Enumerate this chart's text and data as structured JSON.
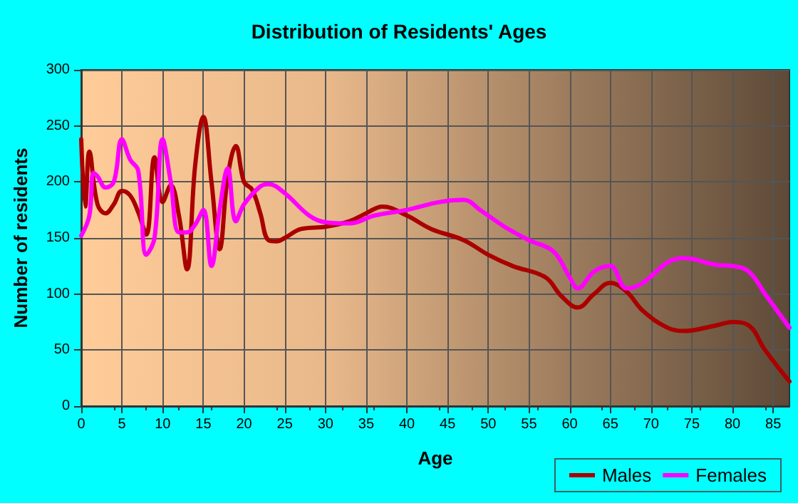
{
  "chart_data": {
    "type": "line",
    "title": "Distribution of Residents' Ages",
    "xlabel": "Age",
    "ylabel": "Number of residents",
    "xlim": [
      0,
      87
    ],
    "xticks": [
      0,
      5,
      10,
      15,
      20,
      25,
      30,
      35,
      40,
      45,
      50,
      55,
      60,
      65,
      70,
      75,
      80,
      85
    ],
    "ylim": [
      0,
      300
    ],
    "yticks": [
      0,
      50,
      100,
      150,
      200,
      250,
      300
    ],
    "grid": true,
    "legend": "bottom right",
    "marker": "none",
    "line_style": "solid",
    "series": [
      {
        "name": "Males",
        "color": "#aa0000",
        "x": [
          0,
          0.5,
          1,
          2,
          3,
          4,
          5,
          6,
          7,
          8,
          9,
          10,
          11,
          12,
          13,
          14,
          15,
          16,
          17,
          18,
          19,
          20,
          21,
          22,
          23,
          24,
          25,
          27,
          30,
          33,
          35,
          37,
          40,
          43,
          47,
          50,
          53,
          57,
          59,
          61,
          63,
          65,
          67,
          69,
          72,
          74,
          78,
          80,
          82,
          84,
          87
        ],
        "values": [
          238,
          178,
          227,
          180,
          172,
          180,
          192,
          188,
          173,
          153,
          222,
          182,
          197,
          170,
          122,
          215,
          258,
          200,
          140,
          205,
          232,
          200,
          193,
          172,
          148,
          147,
          150,
          158,
          160,
          165,
          172,
          178,
          170,
          158,
          148,
          135,
          125,
          115,
          98,
          88,
          100,
          110,
          102,
          85,
          70,
          67,
          72,
          75,
          72,
          50,
          22
        ]
      },
      {
        "name": "Females",
        "color": "#ff00ff",
        "x": [
          0,
          1,
          1.5,
          2,
          3,
          4,
          5,
          6,
          7,
          8,
          9,
          10,
          11,
          12,
          13,
          14,
          15,
          16,
          17,
          18,
          19,
          20,
          22,
          23,
          25,
          28,
          30,
          33,
          36,
          40,
          44,
          47,
          49,
          52,
          55,
          58,
          60,
          61,
          63,
          65,
          67,
          69,
          72,
          74,
          78,
          80,
          82,
          84,
          87
        ],
        "values": [
          152,
          170,
          208,
          205,
          195,
          200,
          238,
          220,
          210,
          135,
          150,
          238,
          200,
          155,
          155,
          162,
          175,
          125,
          175,
          212,
          165,
          180,
          196,
          198,
          190,
          170,
          164,
          163,
          170,
          175,
          182,
          184,
          175,
          160,
          148,
          138,
          115,
          105,
          120,
          125,
          105,
          110,
          128,
          132,
          126,
          125,
          120,
          100,
          70
        ]
      }
    ]
  }
}
